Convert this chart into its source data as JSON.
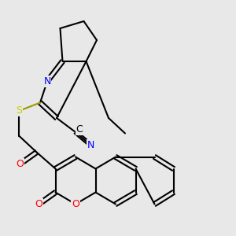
{
  "bg_color": "#e8e8e8",
  "bond_color": "#000000",
  "bond_width": 1.5,
  "atom_colors": {
    "N": "#0000ff",
    "S": "#cccc00",
    "O": "#ff0000",
    "C": "#000000"
  },
  "font_size": 9,
  "figsize": [
    3.0,
    3.0
  ],
  "dpi": 100
}
